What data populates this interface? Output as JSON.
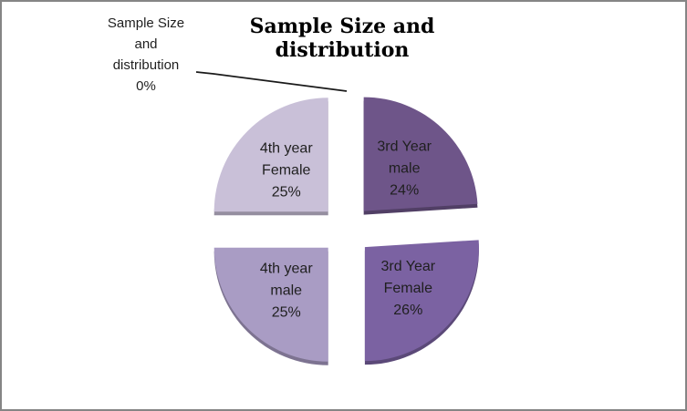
{
  "frame": {
    "border_color": "#858585",
    "background_color": "#ffffff"
  },
  "chart_data": {
    "type": "pie",
    "title": "Sample Size and distribution",
    "unit": "percent",
    "start_angle_deg": 0,
    "direction": "clockwise",
    "exploded": true,
    "legend": "none",
    "label_style": "category-name-and-percentage-inside-slice",
    "slices": [
      {
        "label": "Sample Size and distribution",
        "value": 0,
        "percent_text": "0%",
        "display_lines": [
          "Sample Size",
          "and",
          "distribution",
          "0%"
        ],
        "callout": true,
        "color": null
      },
      {
        "label": "3rd Year male",
        "value": 24,
        "percent_text": "24%",
        "display_lines": [
          "3rd Year",
          "male",
          "24%"
        ],
        "callout": false,
        "color": "#6e5589"
      },
      {
        "label": "3rd Year Female",
        "value": 26,
        "percent_text": "26%",
        "display_lines": [
          "3rd Year",
          "Female",
          "26%"
        ],
        "callout": false,
        "color": "#7b62a2"
      },
      {
        "label": "4th year male",
        "value": 25,
        "percent_text": "25%",
        "display_lines": [
          "4th year",
          "male",
          "25%"
        ],
        "callout": false,
        "color": "#a99cc4"
      },
      {
        "label": "4th year Female",
        "value": 25,
        "percent_text": "25%",
        "display_lines": [
          "4th year",
          "Female",
          "25%"
        ],
        "callout": false,
        "color": "#c9c0d8"
      }
    ]
  }
}
